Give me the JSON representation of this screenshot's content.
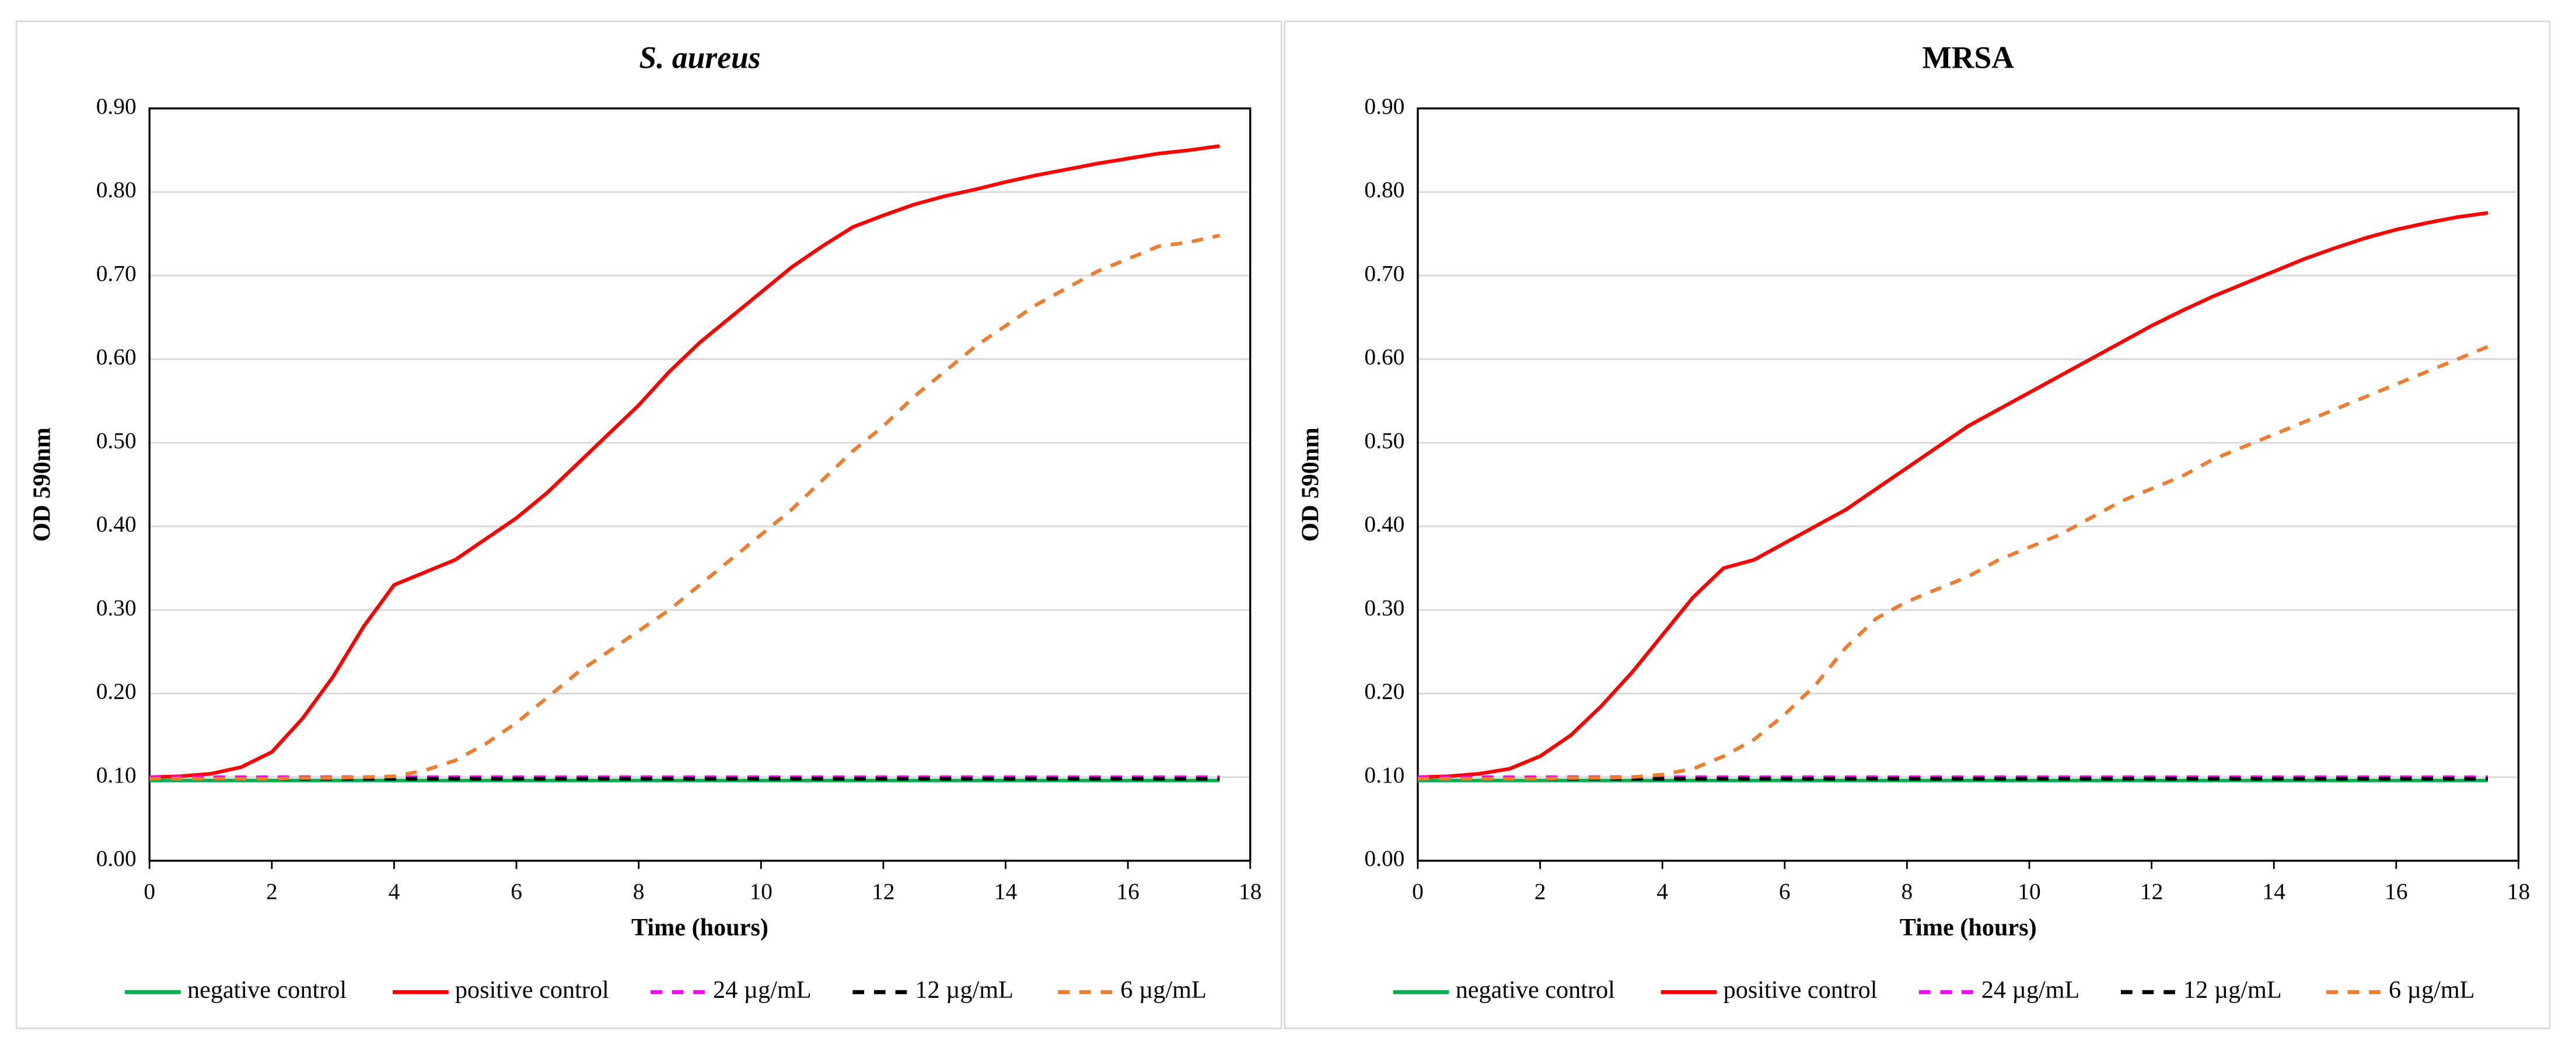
{
  "chart_data": [
    {
      "type": "line",
      "title": "S. aureus",
      "title_italic": true,
      "xlabel": "Time (hours)",
      "ylabel": "OD 590nm",
      "xlim": [
        0,
        18
      ],
      "ylim": [
        0,
        0.9
      ],
      "xticks": [
        0,
        2,
        4,
        6,
        8,
        10,
        12,
        14,
        16,
        18
      ],
      "yticks": [
        {
          "value": 0,
          "label": "0.00"
        },
        {
          "value": 0.1,
          "label": "0.10"
        },
        {
          "value": 0.2,
          "label": "0.20"
        },
        {
          "value": 0.3,
          "label": "0.30"
        },
        {
          "value": 0.4,
          "label": "0.40"
        },
        {
          "value": 0.5,
          "label": "0.50"
        },
        {
          "value": 0.6,
          "label": "0.60"
        },
        {
          "value": 0.7,
          "label": "0.70"
        },
        {
          "value": 0.8,
          "label": "0.80"
        },
        {
          "value": 0.9,
          "label": "0.90"
        }
      ],
      "grid": true,
      "legend": "bottom",
      "x": [
        0,
        0.5,
        1,
        1.5,
        2,
        2.5,
        3,
        3.5,
        4,
        4.5,
        5,
        5.5,
        6,
        6.5,
        7,
        7.5,
        8,
        8.5,
        9,
        9.5,
        10,
        10.5,
        11,
        11.5,
        12,
        12.5,
        13,
        13.5,
        14,
        14.5,
        15,
        15.5,
        16,
        16.5,
        17,
        17.5
      ],
      "series": [
        {
          "name": "negative control",
          "color": "#00b050",
          "dash": false,
          "values": [
            0.096,
            0.096,
            0.096,
            0.096,
            0.096,
            0.096,
            0.096,
            0.096,
            0.096,
            0.096,
            0.096,
            0.096,
            0.096,
            0.096,
            0.096,
            0.096,
            0.096,
            0.096,
            0.096,
            0.096,
            0.096,
            0.096,
            0.096,
            0.096,
            0.096,
            0.096,
            0.096,
            0.096,
            0.096,
            0.096,
            0.096,
            0.096,
            0.096,
            0.096,
            0.096,
            0.096
          ]
        },
        {
          "name": "positive control",
          "color": "#ff0000",
          "dash": false,
          "values": [
            0.1,
            0.101,
            0.104,
            0.112,
            0.13,
            0.17,
            0.22,
            0.28,
            0.33,
            0.345,
            0.36,
            0.385,
            0.41,
            0.44,
            0.475,
            0.51,
            0.545,
            0.585,
            0.62,
            0.65,
            0.68,
            0.71,
            0.735,
            0.758,
            0.772,
            0.785,
            0.795,
            0.803,
            0.812,
            0.82,
            0.827,
            0.834,
            0.84,
            0.846,
            0.85,
            0.855
          ]
        },
        {
          "name": "24 µg/mL",
          "color": "#ff00ff",
          "dash": true,
          "values": [
            0.1,
            0.1,
            0.1,
            0.1,
            0.1,
            0.1,
            0.1,
            0.1,
            0.1,
            0.1,
            0.1,
            0.1,
            0.1,
            0.1,
            0.1,
            0.1,
            0.1,
            0.1,
            0.1,
            0.1,
            0.1,
            0.1,
            0.1,
            0.1,
            0.1,
            0.1,
            0.1,
            0.1,
            0.1,
            0.1,
            0.1,
            0.1,
            0.1,
            0.1,
            0.1,
            0.1
          ]
        },
        {
          "name": "12 µg/mL",
          "color": "#000000",
          "dash": true,
          "values": [
            0.098,
            0.098,
            0.098,
            0.098,
            0.098,
            0.098,
            0.098,
            0.098,
            0.098,
            0.098,
            0.098,
            0.098,
            0.098,
            0.098,
            0.098,
            0.098,
            0.098,
            0.098,
            0.098,
            0.098,
            0.098,
            0.098,
            0.098,
            0.098,
            0.098,
            0.098,
            0.098,
            0.098,
            0.098,
            0.098,
            0.098,
            0.098,
            0.098,
            0.098,
            0.098,
            0.098
          ]
        },
        {
          "name": "6 µg/mL",
          "color": "#ed7d31",
          "dash": true,
          "values": [
            0.098,
            0.098,
            0.098,
            0.098,
            0.098,
            0.099,
            0.099,
            0.1,
            0.101,
            0.108,
            0.12,
            0.14,
            0.165,
            0.195,
            0.225,
            0.25,
            0.275,
            0.3,
            0.33,
            0.36,
            0.39,
            0.42,
            0.455,
            0.49,
            0.52,
            0.555,
            0.585,
            0.615,
            0.64,
            0.665,
            0.685,
            0.705,
            0.72,
            0.735,
            0.74,
            0.748
          ]
        }
      ]
    },
    {
      "type": "line",
      "title": "MRSA",
      "title_italic": false,
      "xlabel": "Time (hours)",
      "ylabel": "OD 590nm",
      "xlim": [
        0,
        18
      ],
      "ylim": [
        0,
        0.9
      ],
      "xticks": [
        0,
        2,
        4,
        6,
        8,
        10,
        12,
        14,
        16,
        18
      ],
      "yticks": [
        {
          "value": 0,
          "label": "0.00"
        },
        {
          "value": 0.1,
          "label": "0.10"
        },
        {
          "value": 0.2,
          "label": "0.20"
        },
        {
          "value": 0.3,
          "label": "0.30"
        },
        {
          "value": 0.4,
          "label": "0.40"
        },
        {
          "value": 0.5,
          "label": "0.50"
        },
        {
          "value": 0.6,
          "label": "0.60"
        },
        {
          "value": 0.7,
          "label": "0.70"
        },
        {
          "value": 0.8,
          "label": "0.80"
        },
        {
          "value": 0.9,
          "label": "0.90"
        }
      ],
      "grid": true,
      "legend": "bottom",
      "x": [
        0,
        0.5,
        1,
        1.5,
        2,
        2.5,
        3,
        3.5,
        4,
        4.5,
        5,
        5.5,
        6,
        6.5,
        7,
        7.5,
        8,
        8.5,
        9,
        9.5,
        10,
        10.5,
        11,
        11.5,
        12,
        12.5,
        13,
        13.5,
        14,
        14.5,
        15,
        15.5,
        16,
        16.5,
        17,
        17.5
      ],
      "series": [
        {
          "name": "negative control",
          "color": "#00b050",
          "dash": false,
          "values": [
            0.096,
            0.096,
            0.096,
            0.096,
            0.096,
            0.096,
            0.096,
            0.096,
            0.096,
            0.096,
            0.096,
            0.096,
            0.096,
            0.096,
            0.096,
            0.096,
            0.096,
            0.096,
            0.096,
            0.096,
            0.096,
            0.096,
            0.096,
            0.096,
            0.096,
            0.096,
            0.096,
            0.096,
            0.096,
            0.096,
            0.096,
            0.096,
            0.096,
            0.096,
            0.096,
            0.096
          ]
        },
        {
          "name": "positive control",
          "color": "#ff0000",
          "dash": false,
          "values": [
            0.1,
            0.101,
            0.104,
            0.11,
            0.125,
            0.15,
            0.185,
            0.225,
            0.27,
            0.315,
            0.35,
            0.36,
            0.38,
            0.4,
            0.42,
            0.445,
            0.47,
            0.495,
            0.52,
            0.54,
            0.56,
            0.58,
            0.6,
            0.62,
            0.64,
            0.658,
            0.675,
            0.69,
            0.705,
            0.72,
            0.733,
            0.745,
            0.755,
            0.763,
            0.77,
            0.775
          ]
        },
        {
          "name": "24 µg/mL",
          "color": "#ff00ff",
          "dash": true,
          "values": [
            0.1,
            0.1,
            0.1,
            0.1,
            0.1,
            0.1,
            0.1,
            0.1,
            0.1,
            0.1,
            0.1,
            0.1,
            0.1,
            0.1,
            0.1,
            0.1,
            0.1,
            0.1,
            0.1,
            0.1,
            0.1,
            0.1,
            0.1,
            0.1,
            0.1,
            0.1,
            0.1,
            0.1,
            0.1,
            0.1,
            0.1,
            0.1,
            0.1,
            0.1,
            0.1,
            0.1
          ]
        },
        {
          "name": "12 µg/mL",
          "color": "#000000",
          "dash": true,
          "values": [
            0.098,
            0.098,
            0.098,
            0.098,
            0.098,
            0.098,
            0.098,
            0.098,
            0.098,
            0.098,
            0.098,
            0.098,
            0.098,
            0.098,
            0.098,
            0.098,
            0.098,
            0.098,
            0.098,
            0.098,
            0.098,
            0.098,
            0.098,
            0.098,
            0.098,
            0.098,
            0.098,
            0.098,
            0.098,
            0.098,
            0.098,
            0.098,
            0.098,
            0.098,
            0.098,
            0.098
          ]
        },
        {
          "name": "6 µg/mL",
          "color": "#ed7d31",
          "dash": true,
          "values": [
            0.098,
            0.098,
            0.098,
            0.098,
            0.098,
            0.099,
            0.099,
            0.1,
            0.103,
            0.11,
            0.125,
            0.145,
            0.175,
            0.21,
            0.255,
            0.29,
            0.31,
            0.325,
            0.34,
            0.36,
            0.375,
            0.39,
            0.41,
            0.43,
            0.445,
            0.46,
            0.48,
            0.495,
            0.51,
            0.525,
            0.54,
            0.555,
            0.57,
            0.585,
            0.6,
            0.615
          ]
        }
      ]
    }
  ]
}
